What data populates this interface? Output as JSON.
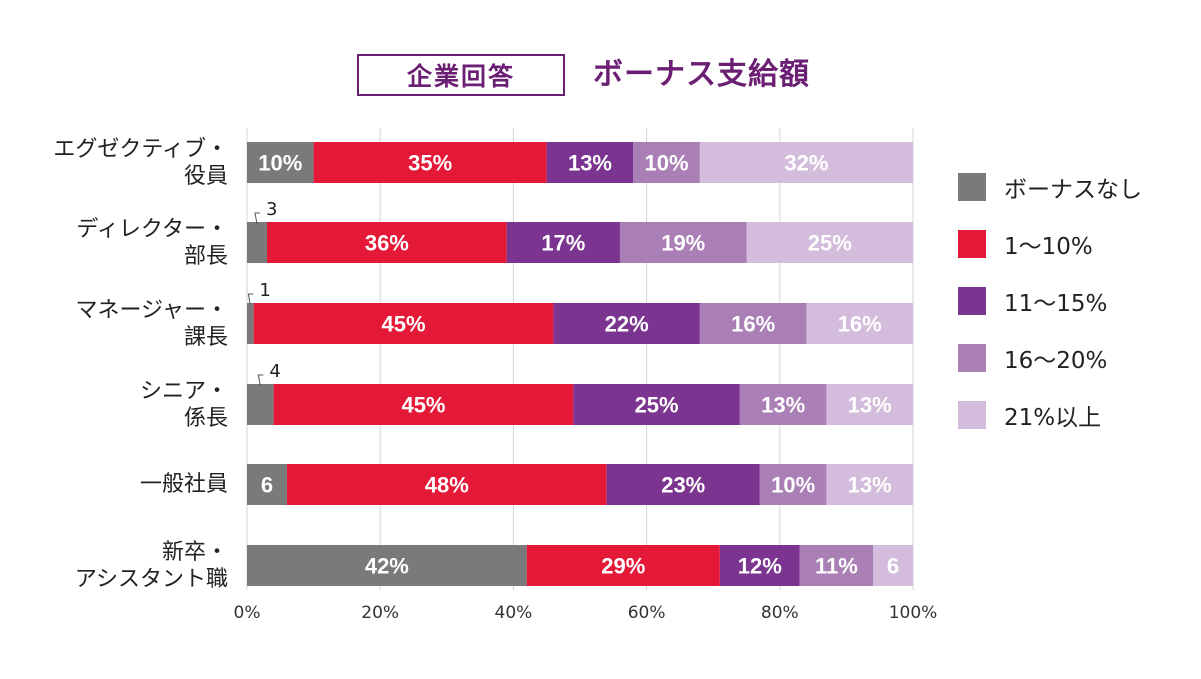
{
  "header": {
    "tag_label": "企業回答",
    "title": "ボーナス支給額"
  },
  "colors": {
    "none": "#7a7a7a",
    "p1_10": "#e31937",
    "p11_15": "#7b3590",
    "p16_20": "#a97fb5",
    "p21_plus": "#d3bcdc"
  },
  "chart_data": {
    "type": "bar",
    "orientation": "horizontal",
    "stacked": true,
    "title": "ボーナス支給額",
    "categories": [
      [
        "エグゼクティブ・",
        "役員"
      ],
      [
        "ディレクター・",
        "部長"
      ],
      [
        "マネージャー・",
        "課長"
      ],
      [
        "シニア・",
        "係長"
      ],
      [
        "一般社員"
      ],
      [
        "新卒・",
        "アシスタント職"
      ]
    ],
    "series": [
      {
        "name": "ボーナスなし",
        "values": [
          10,
          3,
          1,
          4,
          6,
          42
        ],
        "labels": [
          "10%",
          "3",
          "1",
          "4",
          "6",
          "42%"
        ],
        "color": "#7a7a7a"
      },
      {
        "name": "1〜10%",
        "values": [
          35,
          36,
          45,
          45,
          48,
          29
        ],
        "labels": [
          "35%",
          "36%",
          "45%",
          "45%",
          "48%",
          "29%"
        ],
        "color": "#e31937"
      },
      {
        "name": "11〜15%",
        "values": [
          13,
          17,
          22,
          25,
          23,
          12
        ],
        "labels": [
          "13%",
          "17%",
          "22%",
          "25%",
          "23%",
          "12%"
        ],
        "color": "#7b3590"
      },
      {
        "name": "16〜20%",
        "values": [
          10,
          19,
          16,
          13,
          10,
          11
        ],
        "labels": [
          "10%",
          "19%",
          "16%",
          "13%",
          "10%",
          "11%"
        ],
        "color": "#a97fb5"
      },
      {
        "name": "21%以上",
        "values": [
          32,
          25,
          16,
          13,
          13,
          6
        ],
        "labels": [
          "32%",
          "25%",
          "16%",
          "13%",
          "13%",
          "6"
        ],
        "color": "#d3bcdc"
      }
    ],
    "xlim": [
      0,
      100
    ],
    "xticks": [
      "0%",
      "20%",
      "40%",
      "60%",
      "80%",
      "100%"
    ],
    "grid": true,
    "legend_position": "right"
  }
}
